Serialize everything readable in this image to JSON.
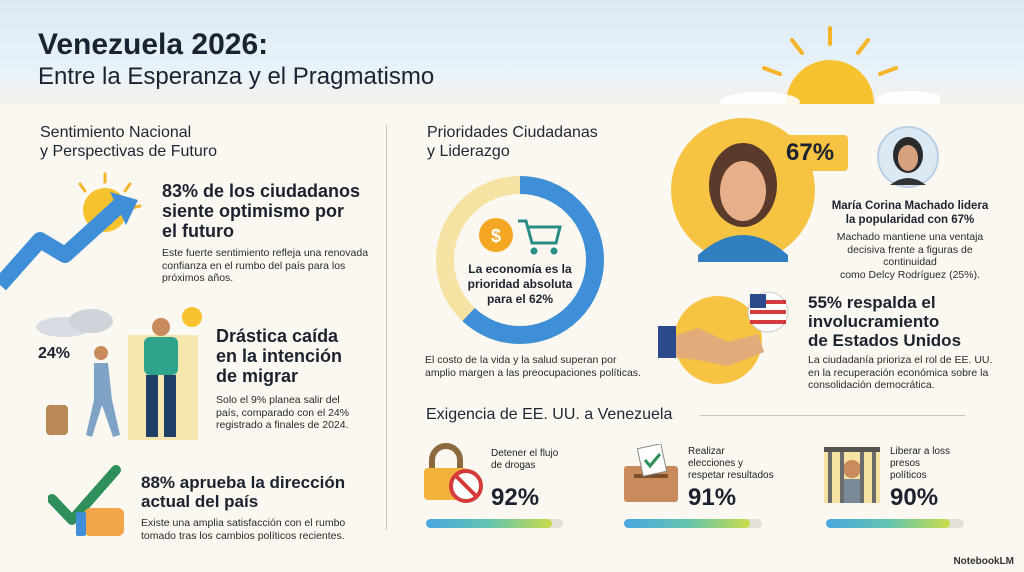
{
  "header": {
    "title": "Venezuela 2026:",
    "subtitle": "Entre la Esperanza y el Pragmatismo"
  },
  "left": {
    "section_title_1": "Sentimiento Nacional",
    "section_title_2": "y Perspectivas de Futuro",
    "optimism": {
      "headline_1": "83% de los ciudadanos",
      "headline_2": "siente optimismo por",
      "headline_3": "el futuro",
      "body_1": "Este fuerte sentimiento refleja una renovada",
      "body_2": "confianza en el rumbo del país para los",
      "body_3": "próximos años."
    },
    "migration": {
      "stat": "24%",
      "headline_1": "Drástica caída",
      "headline_2": "en la intención",
      "headline_3": "de migrar",
      "body_1": "Solo el 9% planea salir del",
      "body_2": "país, comparado con el 24%",
      "body_3": "registrado a finales de 2024."
    },
    "approval": {
      "headline_1": "88% aprueba la dirección",
      "headline_2": "actual del país",
      "body_1": "Existe una amplia satisfacción con el rumbo",
      "body_2": "tomado tras los cambios políticos recientes."
    }
  },
  "right": {
    "section_title_1": "Prioridades Ciudadanas",
    "section_title_2": "y Liderazgo",
    "economy": {
      "donut_1": "La economía es la",
      "donut_2": "prioridad absoluta",
      "donut_3": "para el 62%",
      "donut_value": 62,
      "body_1": "El costo de la vida y la salud superan por",
      "body_2": "amplio margen a las preocupaciones políticas."
    },
    "leader": {
      "stat": "67%",
      "headline_1": "María Corina Machado lidera",
      "headline_2": "la popularidad con 67%",
      "body_1": "Machado mantiene una ventaja",
      "body_2": "decisiva frente a figuras de continuidad",
      "body_3": "como Delcy Rodríguez (25%)."
    },
    "us": {
      "headline_1": "55% respalda el",
      "headline_2": "involucramiento",
      "headline_3": "de Estados Unidos",
      "body_1": "La ciudadanía prioriza el rol de EE. UU.",
      "body_2": "en la recuperación económica sobre la",
      "body_3": "consolidación democrática."
    },
    "demands_title": "Exigencia de EE. UU. a Venezuela",
    "demands": [
      {
        "label_1": "Detener el flujo",
        "label_2": "de drogas",
        "label_3": "",
        "value": "92%",
        "fill": 0.92
      },
      {
        "label_1": "Realizar",
        "label_2": "elecciones y",
        "label_3": "respetar resultados",
        "value": "91%",
        "fill": 0.91
      },
      {
        "label_1": "Liberar a loss",
        "label_2": "presos",
        "label_3": "políticos",
        "value": "90%",
        "fill": 0.9
      }
    ]
  },
  "brand": "NotebookLM",
  "colors": {
    "accent_orange": "#f5a623",
    "accent_blue": "#3f8fd8",
    "green": "#6cbf4a"
  }
}
